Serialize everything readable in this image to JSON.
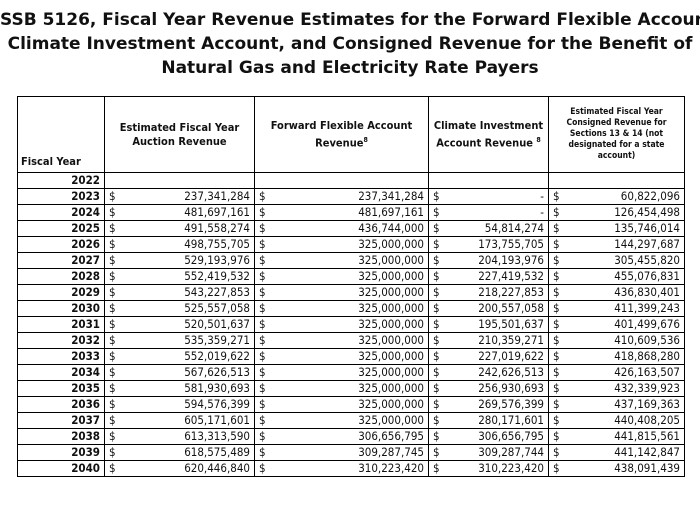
{
  "title_lines": [
    "SSB 5126, Fiscal Year Revenue Estimates for the Forward Flexible Account,",
    "Climate Investment Account, and Consigned Revenue for the Benefit of",
    "Natural Gas and Electricity Rate Payers"
  ],
  "table": {
    "headers": {
      "fiscal_year": "Fiscal Year",
      "auction": "Estimated Fiscal Year Auction Revenue",
      "ffa": "Forward Flexible Account Revenue",
      "ffa_note": "8",
      "cia": "Climate Investment Account Revenue",
      "cia_note": "8",
      "consigned": "Estimated Fiscal Year Consigned Revenue for Sections 13 & 14 (not designated for a state account)"
    },
    "currency_symbol": "$",
    "rows": [
      {
        "year": "2022",
        "auction": "",
        "ffa": "",
        "cia": "",
        "consigned": ""
      },
      {
        "year": "2023",
        "auction": "237,341,284",
        "ffa": "237,341,284",
        "cia": "-",
        "consigned": "60,822,096"
      },
      {
        "year": "2024",
        "auction": "481,697,161",
        "ffa": "481,697,161",
        "cia": "-",
        "consigned": "126,454,498"
      },
      {
        "year": "2025",
        "auction": "491,558,274",
        "ffa": "436,744,000",
        "cia": "54,814,274",
        "consigned": "135,746,014"
      },
      {
        "year": "2026",
        "auction": "498,755,705",
        "ffa": "325,000,000",
        "cia": "173,755,705",
        "consigned": "144,297,687"
      },
      {
        "year": "2027",
        "auction": "529,193,976",
        "ffa": "325,000,000",
        "cia": "204,193,976",
        "consigned": "305,455,820"
      },
      {
        "year": "2028",
        "auction": "552,419,532",
        "ffa": "325,000,000",
        "cia": "227,419,532",
        "consigned": "455,076,831"
      },
      {
        "year": "2029",
        "auction": "543,227,853",
        "ffa": "325,000,000",
        "cia": "218,227,853",
        "consigned": "436,830,401"
      },
      {
        "year": "2030",
        "auction": "525,557,058",
        "ffa": "325,000,000",
        "cia": "200,557,058",
        "consigned": "411,399,243"
      },
      {
        "year": "2031",
        "auction": "520,501,637",
        "ffa": "325,000,000",
        "cia": "195,501,637",
        "consigned": "401,499,676"
      },
      {
        "year": "2032",
        "auction": "535,359,271",
        "ffa": "325,000,000",
        "cia": "210,359,271",
        "consigned": "410,609,536"
      },
      {
        "year": "2033",
        "auction": "552,019,622",
        "ffa": "325,000,000",
        "cia": "227,019,622",
        "consigned": "418,868,280"
      },
      {
        "year": "2034",
        "auction": "567,626,513",
        "ffa": "325,000,000",
        "cia": "242,626,513",
        "consigned": "426,163,507"
      },
      {
        "year": "2035",
        "auction": "581,930,693",
        "ffa": "325,000,000",
        "cia": "256,930,693",
        "consigned": "432,339,923"
      },
      {
        "year": "2036",
        "auction": "594,576,399",
        "ffa": "325,000,000",
        "cia": "269,576,399",
        "consigned": "437,169,363"
      },
      {
        "year": "2037",
        "auction": "605,171,601",
        "ffa": "325,000,000",
        "cia": "280,171,601",
        "consigned": "440,408,205"
      },
      {
        "year": "2038",
        "auction": "613,313,590",
        "ffa": "306,656,795",
        "cia": "306,656,795",
        "consigned": "441,815,561"
      },
      {
        "year": "2039",
        "auction": "618,575,489",
        "ffa": "309,287,745",
        "cia": "309,287,744",
        "consigned": "441,142,847"
      },
      {
        "year": "2040",
        "auction": "620,446,840",
        "ffa": "310,223,420",
        "cia": "310,223,420",
        "consigned": "438,091,439"
      }
    ]
  }
}
